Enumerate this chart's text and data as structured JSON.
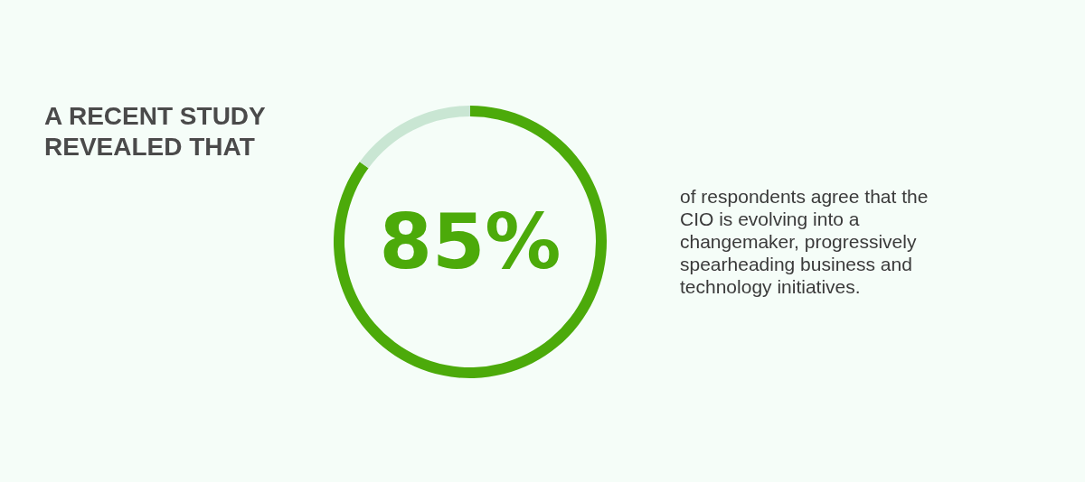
{
  "chart_data": {
    "type": "donut",
    "title": "A RECENT STUDY REVEALED THAT",
    "categories": [
      null,
      null
    ],
    "values": [
      85,
      15
    ],
    "colors": [
      "#4caa0a",
      "#c9e6d3"
    ],
    "value_labels": [
      "85%",
      null
    ],
    "annotations": [
      "of respondents agree that the CIO is evolving into a changemaker, progressively spearheading business and technology initiatives."
    ]
  }
}
